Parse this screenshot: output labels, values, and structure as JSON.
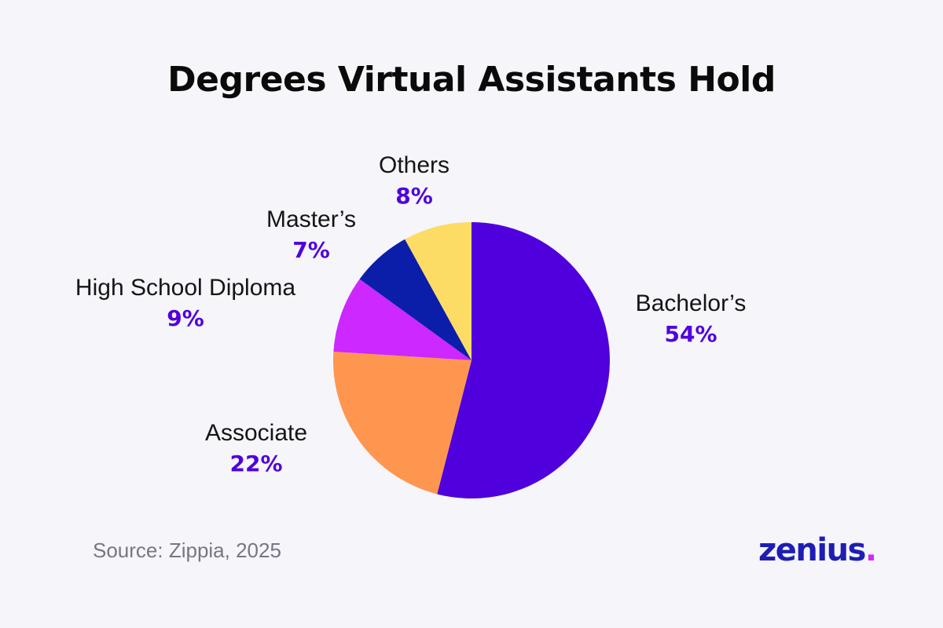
{
  "chart_data": {
    "type": "pie",
    "title": "Degrees Virtual Assistants Hold",
    "slices": [
      {
        "label": "Bachelor’s",
        "value": 54,
        "display": "54%",
        "color": "#5000dc"
      },
      {
        "label": "Associate",
        "value": 22,
        "display": "22%",
        "color": "#ff9650"
      },
      {
        "label": "High School Diploma",
        "value": 9,
        "display": "9%",
        "color": "#cc28ff"
      },
      {
        "label": "Master’s",
        "value": 7,
        "display": "7%",
        "color": "#0a1eaa"
      },
      {
        "label": "Others",
        "value": 8,
        "display": "8%",
        "color": "#fcdc64"
      }
    ],
    "start": "12 o'clock",
    "direction": "clockwise",
    "label_color": "#5000dc",
    "legend": "none"
  },
  "source": "Source: Zippia, 2025",
  "logo": {
    "text": "zenius",
    "dot": ".",
    "text_color": "#1e1eb4",
    "dot_color": "#d428ff"
  }
}
